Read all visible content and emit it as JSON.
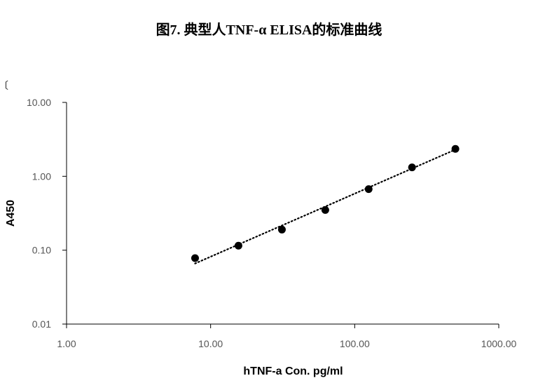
{
  "chart_data": {
    "type": "scatter",
    "title": "图7. 典型人TNF-α ELISA的标准曲线",
    "xlabel": "hTNF-a Con. pg/ml",
    "ylabel": "A450",
    "x_scale": "log",
    "y_scale": "log",
    "xlim": [
      1,
      1000
    ],
    "ylim": [
      0.01,
      10
    ],
    "x_ticks": [
      "1.00",
      "10.00",
      "100.00",
      "1000.00"
    ],
    "y_ticks": [
      "0.01",
      "0.10",
      "1.00",
      "10.00"
    ],
    "grid": false,
    "legend": "none",
    "series": [
      {
        "x": [
          7.8,
          15.6,
          31.25,
          62.5,
          125,
          250,
          500
        ],
        "y": [
          0.078,
          0.115,
          0.19,
          0.35,
          0.67,
          1.32,
          2.35
        ],
        "marker": "circle",
        "color": "#000000"
      }
    ],
    "trendline": {
      "style": "dotted",
      "color": "#000000",
      "from": [
        7.8,
        0.066
      ],
      "to": [
        500,
        2.3
      ]
    }
  },
  "edge_mark": "〔"
}
